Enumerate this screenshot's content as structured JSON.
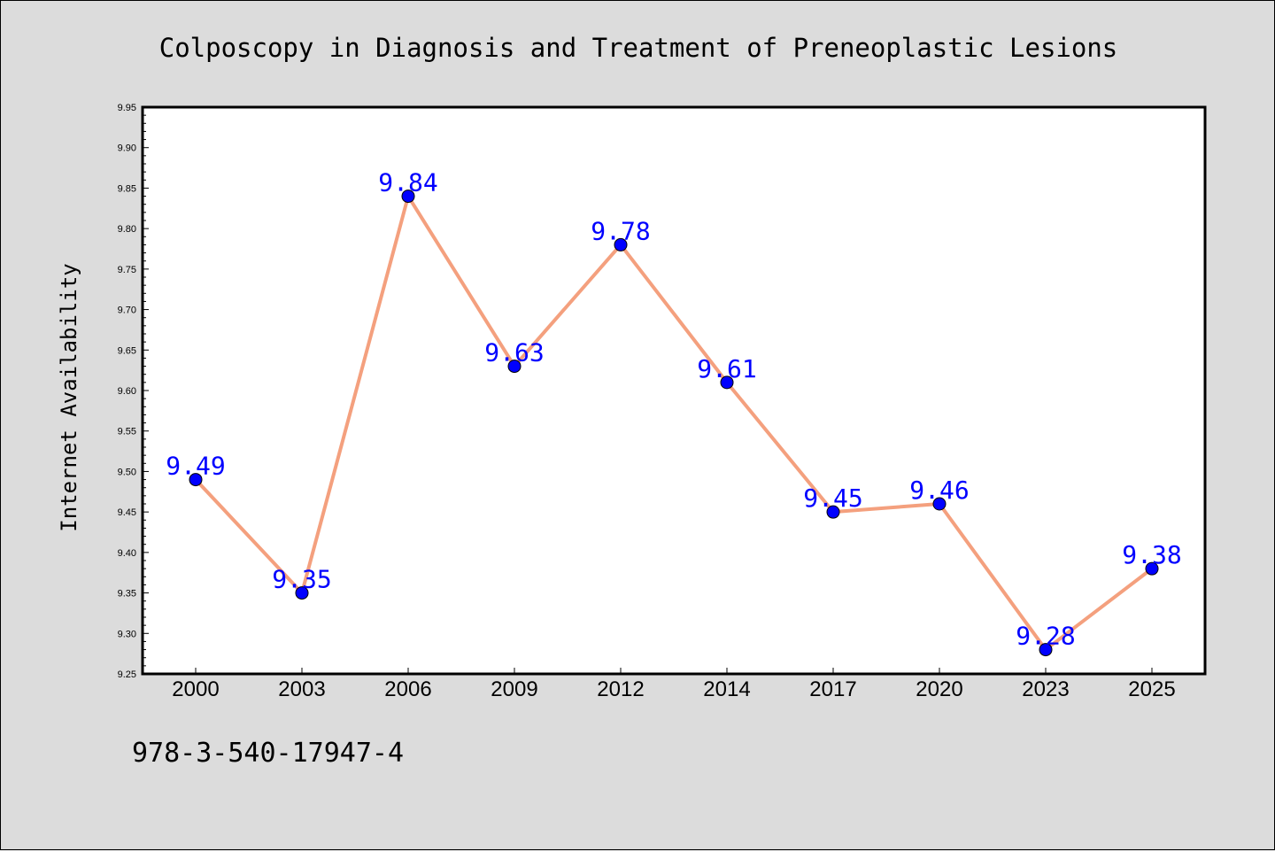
{
  "chart_data": {
    "type": "line",
    "title": "Colposcopy in Diagnosis and Treatment of Preneoplastic Lesions",
    "xlabel": "",
    "ylabel": "Internet Availability",
    "categories": [
      "2000",
      "2003",
      "2006",
      "2009",
      "2012",
      "2014",
      "2017",
      "2020",
      "2023",
      "2025"
    ],
    "series": [
      {
        "values": [
          9.49,
          9.35,
          9.84,
          9.63,
          9.78,
          9.61,
          9.45,
          9.46,
          9.28,
          9.38
        ]
      }
    ],
    "data_labels": [
      "9.49",
      "9.35",
      "9.84",
      "9.63",
      "9.78",
      "9.61",
      "9.45",
      "9.46",
      "9.28",
      "9.38"
    ],
    "yticks": [
      "9.25",
      "9.30",
      "9.35",
      "9.40",
      "9.45",
      "9.50",
      "9.55",
      "9.60",
      "9.65",
      "9.70",
      "9.75",
      "9.80",
      "9.85",
      "9.90",
      "9.95"
    ],
    "ylim": [
      9.25,
      9.95
    ],
    "grid": false,
    "legend": "none",
    "line_color": "#f4a07e",
    "marker_color": "#0000ff",
    "label_color": "#0000ff"
  },
  "footer": {
    "isbn": "978-3-540-17947-4"
  }
}
